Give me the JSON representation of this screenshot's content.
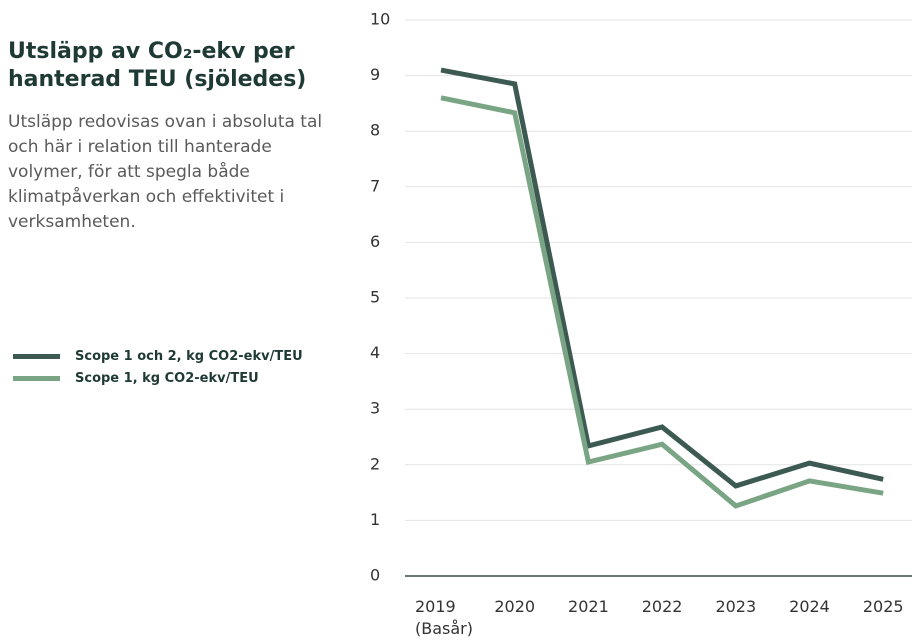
{
  "chart_data": {
    "type": "line",
    "title": "Utsläpp av CO₂-ekv per hanterad TEU (sjöledes)",
    "subtitle": "Utsläpp redovisas ovan i absoluta tal och här i relation till hanterade volymer, för att spegla både klimatpåverkan och effektivitet i verksamheten.",
    "categories": [
      "2019\n(Basår)",
      "2020",
      "2021",
      "2022",
      "2023",
      "2024",
      "2025"
    ],
    "series": [
      {
        "name": "Scope 1 och 2, kg CO2-ekv/TEU",
        "color": "#3d5a52",
        "values": [
          9.1,
          8.85,
          2.34,
          2.68,
          1.62,
          2.03,
          1.74
        ]
      },
      {
        "name": "Scope 1, kg CO2-ekv/TEU",
        "color": "#7aa584",
        "values": [
          8.6,
          8.33,
          2.05,
          2.37,
          1.26,
          1.71,
          1.49
        ]
      }
    ],
    "ylim": [
      0,
      10
    ],
    "yticks": [
      0,
      1,
      2,
      3,
      4,
      5,
      6,
      7,
      8,
      9,
      10
    ],
    "grid": true
  }
}
